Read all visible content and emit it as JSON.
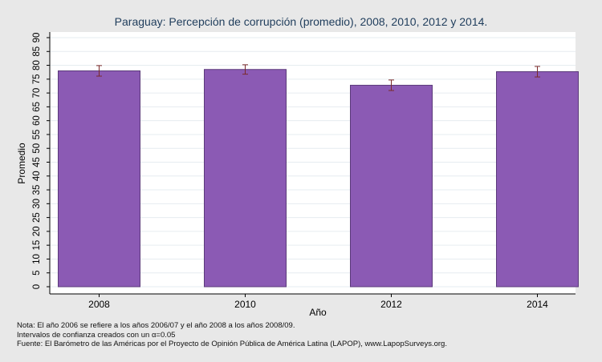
{
  "chart_data": {
    "type": "bar",
    "title": "Paraguay: Percepción de corrupción (promedio), 2008, 2010, 2012 y 2014.",
    "xlabel": "Año",
    "ylabel": "Promedio",
    "categories": [
      "2008",
      "2010",
      "2012",
      "2014"
    ],
    "values": [
      78.0,
      78.5,
      72.8,
      77.7
    ],
    "ci_low": [
      76.1,
      76.8,
      70.9,
      75.8
    ],
    "ci_high": [
      79.9,
      80.2,
      74.7,
      79.6
    ],
    "ylim": [
      0,
      90
    ],
    "yticks": [
      0,
      5,
      10,
      15,
      20,
      25,
      30,
      35,
      40,
      45,
      50,
      55,
      60,
      65,
      70,
      75,
      80,
      85,
      90
    ],
    "grid": true,
    "colors": {
      "bar_fill": "#8b5ab4",
      "bar_stroke": "#5b3a7a",
      "error_bar": "#7a2a2a",
      "plot_background": "#ffffff",
      "page_background": "#e8e8e8",
      "title": "#1f3d5c"
    }
  },
  "notes": {
    "line1": "Nota: El año 2006 se refiere a los años 2006/07 y el año 2008 a los años 2008/09.",
    "line2": "Intervalos de confianza creados con un α=0.05",
    "line3": "Fuente: El Barómetro de las Américas por el Proyecto de Opinión Pública de América Latina (LAPOP), www.LapopSurveys.org."
  }
}
